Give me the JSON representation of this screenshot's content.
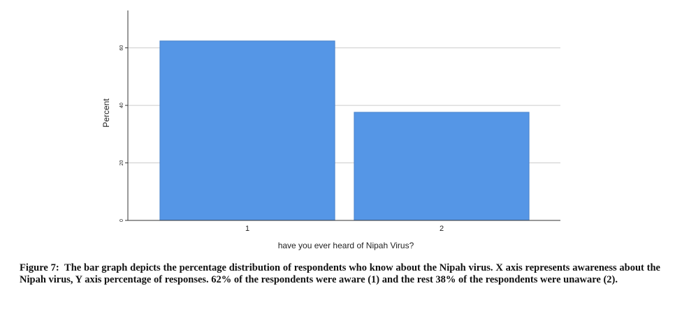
{
  "chart_data": {
    "type": "bar",
    "categories": [
      "1",
      "2"
    ],
    "values": [
      62.4,
      37.6
    ],
    "color": "#5596e6",
    "ylim": [
      0,
      73
    ],
    "yticks": [
      0,
      20,
      40,
      60
    ],
    "grid": true,
    "xlabel": "have you ever heard of Nipah Virus?",
    "ylabel": "Percent"
  },
  "caption": {
    "label": "Figure 7:",
    "text": "The bar graph depicts the percentage distribution of respondents who know about the Nipah virus. X axis represents awareness about the Nipah virus, Y axis percentage of responses. 62% of the respondents were aware (1) and the rest 38% of the respondents were unaware (2)."
  }
}
